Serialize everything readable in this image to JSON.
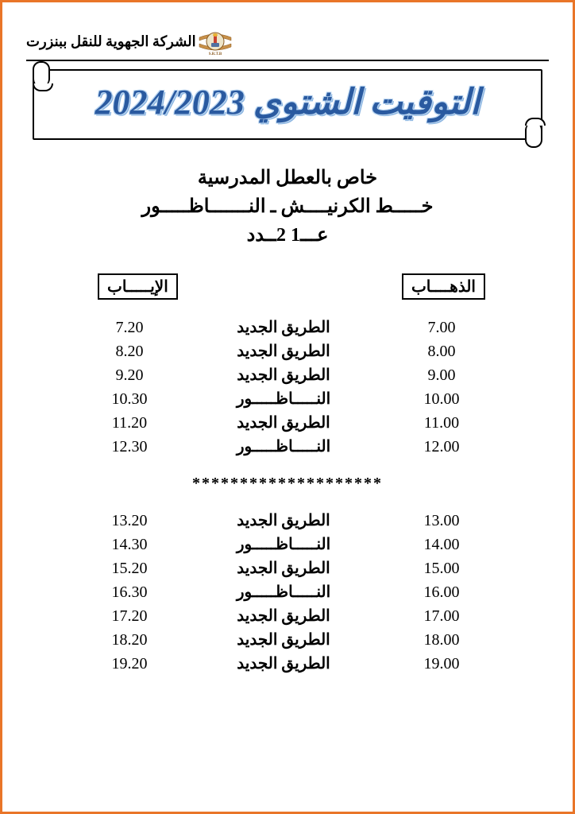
{
  "colors": {
    "border": "#e97528",
    "title": "#2a5aa0",
    "title_shadow": "#b8d4f0",
    "text": "#000000",
    "background": "#ffffff"
  },
  "header": {
    "company": "الشركة الجهوية للنقل ببنزرت",
    "logo_label": "S.R.T.B"
  },
  "banner": {
    "title": "التوقيت الشتوي 2024/2023"
  },
  "subtitle": {
    "line1": "خاص بالعطل المدرسية",
    "line2": "خـــــط الكرنيــــش ـ النـــــــاظـــــور",
    "line3": "عـــ1 2ــدد"
  },
  "columns": {
    "departure": "الذهــــاب",
    "return": "الإيـــــاب"
  },
  "morning": [
    {
      "dep": "7.00",
      "route": "الطريق الجديد",
      "ret": "7.20"
    },
    {
      "dep": "8.00",
      "route": "الطريق الجديد",
      "ret": "8.20"
    },
    {
      "dep": "9.00",
      "route": "الطريق الجديد",
      "ret": "9.20"
    },
    {
      "dep": "10.00",
      "route": "النـــــاظـــــور",
      "ret": "10.30"
    },
    {
      "dep": "11.00",
      "route": "الطريق الجديد",
      "ret": "11.20"
    },
    {
      "dep": "12.00",
      "route": "النـــــاظـــــور",
      "ret": "12.30"
    }
  ],
  "separator": "********************",
  "afternoon": [
    {
      "dep": "13.00",
      "route": "الطريق الجديد",
      "ret": "13.20"
    },
    {
      "dep": "14.00",
      "route": "النـــــاظـــــور",
      "ret": "14.30"
    },
    {
      "dep": "15.00",
      "route": "الطريق الجديد",
      "ret": "15.20"
    },
    {
      "dep": "16.00",
      "route": "النـــــاظـــــور",
      "ret": "16.30"
    },
    {
      "dep": "17.00",
      "route": "الطريق الجديد",
      "ret": "17.20"
    },
    {
      "dep": "18.00",
      "route": "الطريق الجديد",
      "ret": "18.20"
    },
    {
      "dep": "19.00",
      "route": "الطريق الجديد",
      "ret": "19.20"
    }
  ]
}
